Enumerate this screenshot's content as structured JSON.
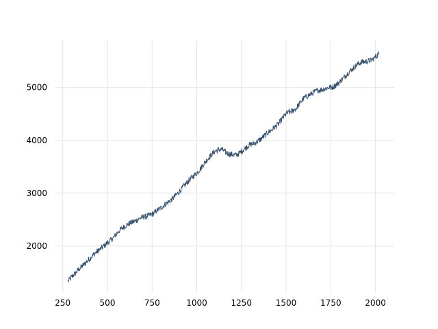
{
  "chart_data": {
    "type": "line",
    "title": "",
    "xlabel": "",
    "ylabel": "",
    "xlim": [
      205,
      2105
    ],
    "ylim": [
      1115,
      5905
    ],
    "grid": true,
    "x_ticks": [
      250,
      500,
      750,
      1000,
      1250,
      1500,
      1750,
      2000
    ],
    "y_ticks": [
      2000,
      3000,
      4000,
      5000
    ],
    "series_color": "#34506e",
    "series": [
      {
        "name": "",
        "points": [
          [
            280,
            1330
          ],
          [
            300,
            1420
          ],
          [
            320,
            1480
          ],
          [
            340,
            1560
          ],
          [
            360,
            1620
          ],
          [
            380,
            1690
          ],
          [
            400,
            1760
          ],
          [
            420,
            1830
          ],
          [
            440,
            1890
          ],
          [
            460,
            1940
          ],
          [
            480,
            2000
          ],
          [
            500,
            2060
          ],
          [
            520,
            2110
          ],
          [
            540,
            2180
          ],
          [
            560,
            2270
          ],
          [
            580,
            2330
          ],
          [
            600,
            2380
          ],
          [
            620,
            2420
          ],
          [
            640,
            2450
          ],
          [
            660,
            2480
          ],
          [
            680,
            2520
          ],
          [
            700,
            2550
          ],
          [
            720,
            2560
          ],
          [
            740,
            2590
          ],
          [
            760,
            2620
          ],
          [
            780,
            2680
          ],
          [
            800,
            2720
          ],
          [
            820,
            2780
          ],
          [
            840,
            2830
          ],
          [
            860,
            2880
          ],
          [
            880,
            2950
          ],
          [
            900,
            3020
          ],
          [
            920,
            3100
          ],
          [
            940,
            3180
          ],
          [
            960,
            3250
          ],
          [
            980,
            3320
          ],
          [
            1000,
            3380
          ],
          [
            1020,
            3460
          ],
          [
            1040,
            3560
          ],
          [
            1060,
            3640
          ],
          [
            1080,
            3720
          ],
          [
            1100,
            3790
          ],
          [
            1120,
            3820
          ],
          [
            1140,
            3830
          ],
          [
            1160,
            3780
          ],
          [
            1180,
            3740
          ],
          [
            1200,
            3730
          ],
          [
            1220,
            3720
          ],
          [
            1240,
            3760
          ],
          [
            1260,
            3820
          ],
          [
            1280,
            3880
          ],
          [
            1300,
            3920
          ],
          [
            1320,
            3940
          ],
          [
            1340,
            3980
          ],
          [
            1360,
            4030
          ],
          [
            1380,
            4090
          ],
          [
            1400,
            4150
          ],
          [
            1420,
            4200
          ],
          [
            1440,
            4260
          ],
          [
            1460,
            4320
          ],
          [
            1480,
            4420
          ],
          [
            1500,
            4500
          ],
          [
            1520,
            4540
          ],
          [
            1540,
            4560
          ],
          [
            1560,
            4620
          ],
          [
            1580,
            4720
          ],
          [
            1600,
            4800
          ],
          [
            1620,
            4840
          ],
          [
            1640,
            4880
          ],
          [
            1660,
            4920
          ],
          [
            1680,
            4950
          ],
          [
            1700,
            4960
          ],
          [
            1720,
            4980
          ],
          [
            1740,
            5000
          ],
          [
            1760,
            5010
          ],
          [
            1780,
            5050
          ],
          [
            1800,
            5110
          ],
          [
            1820,
            5180
          ],
          [
            1840,
            5250
          ],
          [
            1860,
            5320
          ],
          [
            1880,
            5380
          ],
          [
            1900,
            5440
          ],
          [
            1920,
            5480
          ],
          [
            1940,
            5490
          ],
          [
            1960,
            5500
          ],
          [
            1980,
            5520
          ],
          [
            2000,
            5580
          ],
          [
            2020,
            5640
          ]
        ]
      }
    ]
  }
}
